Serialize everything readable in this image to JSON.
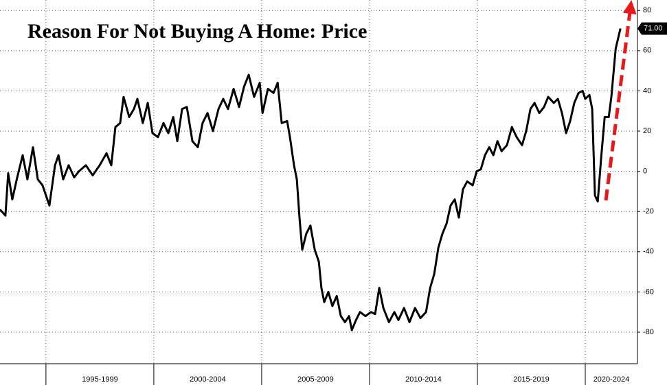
{
  "chart_data": {
    "type": "line",
    "title": "Reason For Not Buying A Home: Price",
    "x": [
      1992.87,
      1993.12,
      1993.25,
      1993.44,
      1993.67,
      1993.92,
      1994.14,
      1994.4,
      1994.62,
      1994.84,
      1995.16,
      1995.42,
      1995.58,
      1995.8,
      1996.05,
      1996.31,
      1996.53,
      1996.85,
      1997.17,
      1997.49,
      1997.81,
      1998.03,
      1998.22,
      1998.44,
      1998.6,
      1998.86,
      1999.08,
      1999.24,
      1999.49,
      1999.72,
      1999.94,
      2000.19,
      2000.45,
      2000.67,
      2000.9,
      2001.09,
      2001.31,
      2001.53,
      2001.79,
      2002.04,
      2002.26,
      2002.49,
      2002.74,
      2003.0,
      2003.22,
      2003.44,
      2003.7,
      2003.95,
      2004.18,
      2004.4,
      2004.65,
      2004.91,
      2005.04,
      2005.29,
      2005.55,
      2005.74,
      2005.93,
      2006.18,
      2006.31,
      2006.5,
      2006.63,
      2006.76,
      2006.88,
      2007.07,
      2007.26,
      2007.46,
      2007.65,
      2007.77,
      2007.9,
      2008.09,
      2008.28,
      2008.48,
      2008.67,
      2008.86,
      2009.05,
      2009.18,
      2009.37,
      2009.56,
      2009.81,
      2010.07,
      2010.26,
      2010.45,
      2010.64,
      2010.9,
      2011.15,
      2011.34,
      2011.6,
      2011.85,
      2012.11,
      2012.36,
      2012.62,
      2012.81,
      2013.0,
      2013.19,
      2013.38,
      2013.57,
      2013.76,
      2013.95,
      2014.14,
      2014.33,
      2014.53,
      2014.78,
      2014.97,
      2015.16,
      2015.35,
      2015.55,
      2015.74,
      2015.93,
      2016.12,
      2016.37,
      2016.6,
      2016.82,
      2017.07,
      2017.26,
      2017.46,
      2017.65,
      2017.87,
      2018.09,
      2018.28,
      2018.54,
      2018.73,
      2018.92,
      2019.11,
      2019.3,
      2019.49,
      2019.69,
      2019.88,
      2020.0,
      2020.19,
      2020.32,
      2020.45,
      2020.58,
      2020.74,
      2020.9,
      2021.09,
      2021.21,
      2021.41,
      2021.63
    ],
    "values": [
      -19,
      -22,
      -1,
      -14,
      -3,
      8,
      -4,
      12,
      -4,
      -7,
      -17,
      3,
      8,
      -4,
      3,
      -3,
      0,
      3,
      -2,
      3,
      9,
      3,
      22,
      24,
      37,
      27,
      31,
      36,
      24,
      34,
      19,
      17,
      24,
      19,
      27,
      15,
      31,
      32,
      15,
      12,
      24,
      29,
      20,
      31,
      36,
      31,
      41,
      32,
      42,
      48,
      37,
      44,
      29,
      41,
      39,
      44,
      24,
      25,
      17,
      3,
      -4,
      -24,
      -39,
      -31,
      -27,
      -39,
      -45,
      -58,
      -65,
      -60,
      -67,
      -62,
      -72,
      -75,
      -72,
      -79,
      -74,
      -70,
      -72,
      -70,
      -71,
      -58,
      -68,
      -75,
      -70,
      -74,
      -68,
      -75,
      -68,
      -73,
      -70,
      -58,
      -51,
      -38,
      -31,
      -26,
      -17,
      -14,
      -23,
      -9,
      -5,
      -7,
      0,
      1,
      8,
      12,
      8,
      15,
      10,
      13,
      22,
      17,
      13,
      20,
      31,
      34,
      29,
      32,
      37,
      34,
      36,
      29,
      19,
      25,
      34,
      39,
      40,
      36,
      38,
      31,
      -12,
      -15,
      7,
      27,
      27,
      37,
      61,
      71
    ],
    "color": "#000000",
    "last_label": {
      "value": 71,
      "label": "71.00"
    },
    "xlim": [
      1992.87,
      2022.42
    ],
    "xticks": [
      1995,
      2000,
      2005,
      2010,
      2015,
      2020
    ],
    "xbands": [
      {
        "label": "1995-1999",
        "from": 1995,
        "to": 2000
      },
      {
        "label": "2000-2004",
        "from": 2000,
        "to": 2005
      },
      {
        "label": "2005-2009",
        "from": 2005,
        "to": 2010
      },
      {
        "label": "2010-2014",
        "from": 2010,
        "to": 2015
      },
      {
        "label": "2015-2019",
        "from": 2015,
        "to": 2020
      },
      {
        "label": "2020-2024",
        "from": 2020,
        "to": 2025
      }
    ],
    "ylim": [
      -95.7,
      85.2
    ],
    "yticks": [
      -80,
      -60,
      -40,
      -20,
      0,
      20,
      40,
      60,
      80
    ],
    "grid": true
  }
}
